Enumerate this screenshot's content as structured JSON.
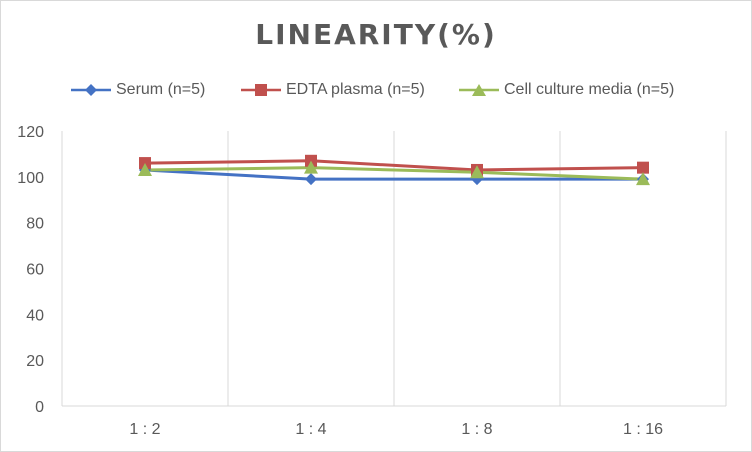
{
  "chart_data": {
    "type": "line",
    "title": "LINEARITY(%)",
    "categories": [
      "1:2",
      "1:4",
      "1:8",
      "1:16"
    ],
    "ylim": [
      0,
      120
    ],
    "yticks": [
      0,
      20,
      40,
      60,
      80,
      100,
      120
    ],
    "grid": "vertical",
    "legend_position": "top",
    "series": [
      {
        "name": "Serum (n=5)",
        "values": [
          103,
          99,
          99,
          99
        ],
        "color": "#4472c4",
        "marker": "diamond"
      },
      {
        "name": "EDTA plasma (n=5)",
        "values": [
          106,
          107,
          103,
          104
        ],
        "color": "#c0504d",
        "marker": "square"
      },
      {
        "name": "Cell culture media (n=5)",
        "values": [
          103,
          104,
          102,
          99
        ],
        "color": "#9bbb59",
        "marker": "triangle"
      }
    ]
  }
}
